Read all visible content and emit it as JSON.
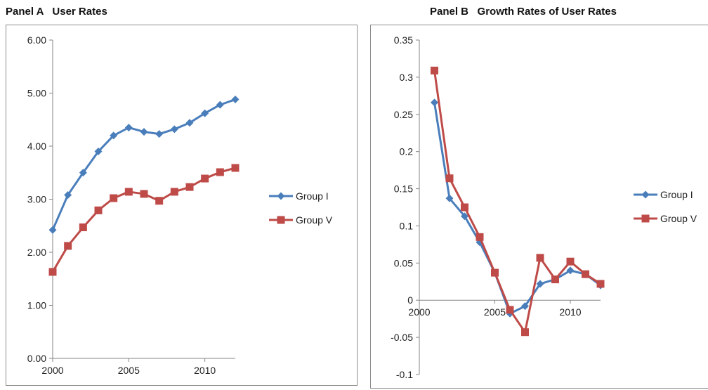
{
  "panels": [
    {
      "id": "A",
      "title": "Panel A   User Rates",
      "chart_data": {
        "type": "line",
        "x": [
          2000,
          2001,
          2002,
          2003,
          2004,
          2005,
          2006,
          2007,
          2008,
          2009,
          2010,
          2011,
          2012
        ],
        "series": [
          {
            "name": "Group I",
            "color": "#4A7EBB",
            "marker": "diamond",
            "values": [
              2.42,
              3.08,
              3.5,
              3.9,
              4.2,
              4.35,
              4.27,
              4.23,
              4.32,
              4.44,
              4.62,
              4.78,
              4.88
            ]
          },
          {
            "name": "Group V",
            "color": "#BE4B48",
            "marker": "square",
            "values": [
              1.63,
              2.12,
              2.47,
              2.79,
              3.02,
              3.14,
              3.1,
              2.97,
              3.14,
              3.23,
              3.39,
              3.51,
              3.59
            ]
          }
        ],
        "xlim": [
          2000,
          2012
        ],
        "ylim": [
          0,
          6
        ],
        "x_ticks": [
          2000,
          2005,
          2010
        ],
        "y_ticks": [
          "0.00",
          "1.00",
          "2.00",
          "3.00",
          "4.00",
          "5.00",
          "6.00"
        ],
        "grid": false,
        "legend": "right"
      }
    },
    {
      "id": "B",
      "title": "Panel B   Growth Rates of User Rates",
      "chart_data": {
        "type": "line",
        "x": [
          2001,
          2002,
          2003,
          2004,
          2005,
          2006,
          2007,
          2008,
          2009,
          2010,
          2011,
          2012
        ],
        "series": [
          {
            "name": "Group I",
            "color": "#4A7EBB",
            "marker": "diamond",
            "values": [
              0.266,
              0.137,
              0.113,
              0.078,
              0.037,
              -0.018,
              -0.008,
              0.022,
              0.028,
              0.04,
              0.035,
              0.02
            ]
          },
          {
            "name": "Group V",
            "color": "#BE4B48",
            "marker": "square",
            "values": [
              0.309,
              0.164,
              0.125,
              0.085,
              0.037,
              -0.013,
              -0.043,
              0.057,
              0.028,
              0.052,
              0.035,
              0.022
            ]
          }
        ],
        "xlim": [
          2000,
          2012
        ],
        "ylim": [
          -0.1,
          0.35
        ],
        "x_ticks": [
          2000,
          2005,
          2010
        ],
        "y_ticks": [
          "-0.1",
          "-0.05",
          "0",
          "0.05",
          "0.1",
          "0.15",
          "0.2",
          "0.25",
          "0.3",
          "0.35"
        ],
        "grid": false,
        "legend": "right"
      }
    }
  ]
}
